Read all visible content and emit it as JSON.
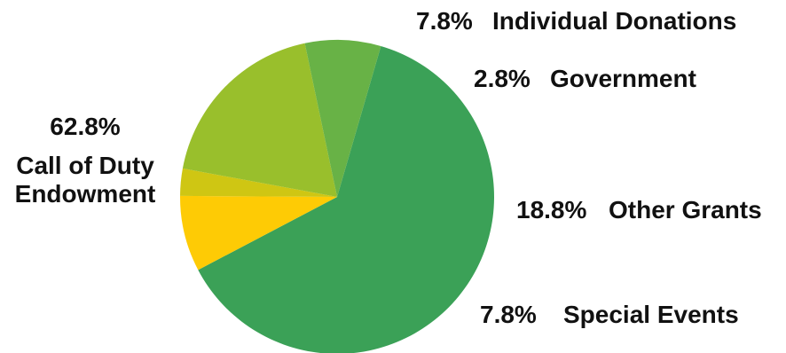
{
  "chart_data": {
    "type": "pie",
    "title": "",
    "slices": [
      {
        "label": "Call of Duty Endowment",
        "label_lines": [
          "Call of Duty",
          "Endowment"
        ],
        "value": 62.8,
        "display": "62.8%",
        "color": "#3ba157"
      },
      {
        "label": "Individual Donations",
        "value": 7.8,
        "display": "7.8%",
        "color": "#fecb05"
      },
      {
        "label": "Government",
        "value": 2.8,
        "display": "2.8%",
        "color": "#cfc613"
      },
      {
        "label": "Other Grants",
        "value": 18.8,
        "display": "18.8%",
        "color": "#99bf2c"
      },
      {
        "label": "Special Events",
        "value": 7.8,
        "display": "7.8%",
        "color": "#68b246"
      }
    ],
    "legend": "none"
  }
}
